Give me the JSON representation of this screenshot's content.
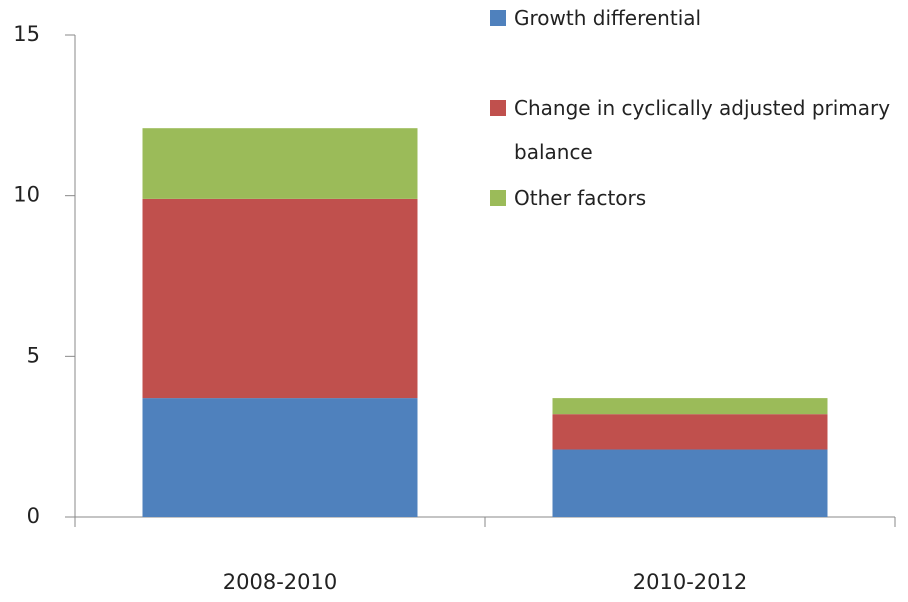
{
  "chart_data": {
    "type": "bar",
    "stacked": true,
    "categories": [
      "2008-2010",
      "2010-2012"
    ],
    "series": [
      {
        "name": "Growth differential",
        "color": "#4f81bd",
        "values": [
          3.7,
          2.1
        ]
      },
      {
        "name": "Change in cyclically adjusted primary balance",
        "color": "#c0504d",
        "values": [
          6.2,
          1.1
        ]
      },
      {
        "name": "Other factors",
        "color": "#9bbb59",
        "values": [
          2.2,
          0.5
        ]
      }
    ],
    "ylim": [
      0,
      15
    ],
    "yticks": [
      0,
      5,
      10,
      15
    ],
    "grid": false,
    "legend": "top-right"
  }
}
